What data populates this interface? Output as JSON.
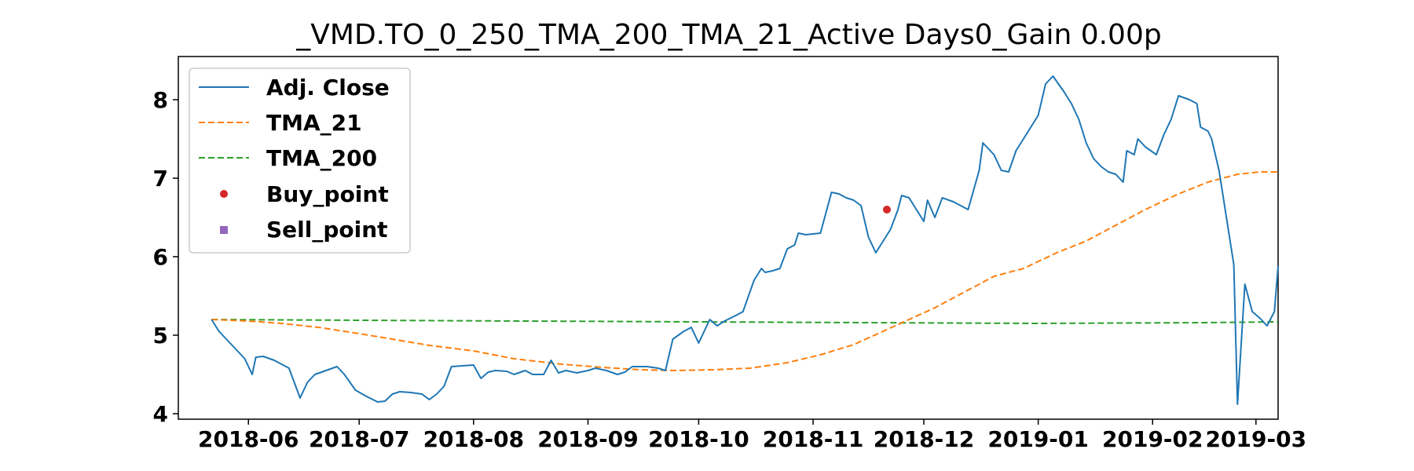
{
  "chart_data": {
    "type": "line",
    "title": "_VMD.TO_0_250_TMA_200_TMA_21_Active Days0_Gain   0.00p",
    "xlabel": "",
    "ylabel": "",
    "x_ticks": [
      "2018-06",
      "2018-07",
      "2018-08",
      "2018-09",
      "2018-10",
      "2018-11",
      "2018-12",
      "2019-01",
      "2019-02",
      "2019-03"
    ],
    "y_ticks": [
      4,
      5,
      6,
      7,
      8
    ],
    "xlim": [
      "2018-05-13",
      "2019-03-07"
    ],
    "ylim": [
      3.93,
      8.55
    ],
    "grid": false,
    "legend_position": "upper left",
    "series": [
      {
        "name": "Adj. Close",
        "style": "solid",
        "color": "#1f77b4",
        "points": [
          [
            "2018-05-22",
            5.2
          ],
          [
            "2018-05-24",
            5.05
          ],
          [
            "2018-05-28",
            4.85
          ],
          [
            "2018-05-31",
            4.7
          ],
          [
            "2018-06-02",
            4.5
          ],
          [
            "2018-06-03",
            4.72
          ],
          [
            "2018-06-05",
            4.73
          ],
          [
            "2018-06-08",
            4.68
          ],
          [
            "2018-06-12",
            4.58
          ],
          [
            "2018-06-15",
            4.2
          ],
          [
            "2018-06-17",
            4.4
          ],
          [
            "2018-06-19",
            4.5
          ],
          [
            "2018-06-22",
            4.55
          ],
          [
            "2018-06-25",
            4.6
          ],
          [
            "2018-06-27",
            4.5
          ],
          [
            "2018-06-30",
            4.3
          ],
          [
            "2018-07-03",
            4.22
          ],
          [
            "2018-07-06",
            4.15
          ],
          [
            "2018-07-08",
            4.16
          ],
          [
            "2018-07-10",
            4.25
          ],
          [
            "2018-07-12",
            4.28
          ],
          [
            "2018-07-15",
            4.27
          ],
          [
            "2018-07-18",
            4.25
          ],
          [
            "2018-07-20",
            4.18
          ],
          [
            "2018-07-22",
            4.25
          ],
          [
            "2018-07-24",
            4.35
          ],
          [
            "2018-07-26",
            4.6
          ],
          [
            "2018-07-29",
            4.61
          ],
          [
            "2018-08-01",
            4.62
          ],
          [
            "2018-08-03",
            4.45
          ],
          [
            "2018-08-05",
            4.53
          ],
          [
            "2018-08-07",
            4.55
          ],
          [
            "2018-08-10",
            4.54
          ],
          [
            "2018-08-12",
            4.5
          ],
          [
            "2018-08-15",
            4.55
          ],
          [
            "2018-08-17",
            4.5
          ],
          [
            "2018-08-20",
            4.5
          ],
          [
            "2018-08-22",
            4.68
          ],
          [
            "2018-08-24",
            4.52
          ],
          [
            "2018-08-26",
            4.55
          ],
          [
            "2018-08-29",
            4.52
          ],
          [
            "2018-09-01",
            4.55
          ],
          [
            "2018-09-03",
            4.58
          ],
          [
            "2018-09-06",
            4.55
          ],
          [
            "2018-09-09",
            4.5
          ],
          [
            "2018-09-11",
            4.53
          ],
          [
            "2018-09-13",
            4.6
          ],
          [
            "2018-09-17",
            4.6
          ],
          [
            "2018-09-20",
            4.58
          ],
          [
            "2018-09-22",
            4.55
          ],
          [
            "2018-09-24",
            4.95
          ],
          [
            "2018-09-27",
            5.05
          ],
          [
            "2018-09-29",
            5.1
          ],
          [
            "2018-10-01",
            4.9
          ],
          [
            "2018-10-04",
            5.2
          ],
          [
            "2018-10-06",
            5.12
          ],
          [
            "2018-10-08",
            5.18
          ],
          [
            "2018-10-11",
            5.25
          ],
          [
            "2018-10-13",
            5.3
          ],
          [
            "2018-10-16",
            5.7
          ],
          [
            "2018-10-18",
            5.85
          ],
          [
            "2018-10-19",
            5.8
          ],
          [
            "2018-10-21",
            5.82
          ],
          [
            "2018-10-23",
            5.85
          ],
          [
            "2018-10-25",
            6.1
          ],
          [
            "2018-10-27",
            6.15
          ],
          [
            "2018-10-28",
            6.3
          ],
          [
            "2018-10-30",
            6.28
          ],
          [
            "2018-11-03",
            6.3
          ],
          [
            "2018-11-06",
            6.82
          ],
          [
            "2018-11-08",
            6.8
          ],
          [
            "2018-11-10",
            6.75
          ],
          [
            "2018-11-12",
            6.72
          ],
          [
            "2018-11-14",
            6.65
          ],
          [
            "2018-11-16",
            6.25
          ],
          [
            "2018-11-18",
            6.05
          ],
          [
            "2018-11-20",
            6.2
          ],
          [
            "2018-11-22",
            6.35
          ],
          [
            "2018-11-24",
            6.6
          ],
          [
            "2018-11-25",
            6.78
          ],
          [
            "2018-11-27",
            6.75
          ],
          [
            "2018-11-29",
            6.6
          ],
          [
            "2018-12-01",
            6.45
          ],
          [
            "2018-12-02",
            6.72
          ],
          [
            "2018-12-04",
            6.5
          ],
          [
            "2018-12-06",
            6.75
          ],
          [
            "2018-12-09",
            6.7
          ],
          [
            "2018-12-11",
            6.65
          ],
          [
            "2018-12-13",
            6.6
          ],
          [
            "2018-12-16",
            7.1
          ],
          [
            "2018-12-17",
            7.45
          ],
          [
            "2018-12-20",
            7.3
          ],
          [
            "2018-12-22",
            7.1
          ],
          [
            "2018-12-24",
            7.08
          ],
          [
            "2018-12-26",
            7.35
          ],
          [
            "2018-12-28",
            7.5
          ],
          [
            "2018-12-30",
            7.65
          ],
          [
            "2019-01-01",
            7.8
          ],
          [
            "2019-01-03",
            8.2
          ],
          [
            "2019-01-05",
            8.3
          ],
          [
            "2019-01-08",
            8.1
          ],
          [
            "2019-01-10",
            7.95
          ],
          [
            "2019-01-12",
            7.75
          ],
          [
            "2019-01-14",
            7.45
          ],
          [
            "2019-01-16",
            7.25
          ],
          [
            "2019-01-18",
            7.15
          ],
          [
            "2019-01-20",
            7.08
          ],
          [
            "2019-01-22",
            7.05
          ],
          [
            "2019-01-24",
            6.95
          ],
          [
            "2019-01-25",
            7.35
          ],
          [
            "2019-01-27",
            7.3
          ],
          [
            "2019-01-28",
            7.5
          ],
          [
            "2019-01-30",
            7.4
          ],
          [
            "2019-02-02",
            7.3
          ],
          [
            "2019-02-04",
            7.55
          ],
          [
            "2019-02-06",
            7.75
          ],
          [
            "2019-02-08",
            8.05
          ],
          [
            "2019-02-11",
            8.0
          ],
          [
            "2019-02-13",
            7.95
          ],
          [
            "2019-02-14",
            7.65
          ],
          [
            "2019-02-16",
            7.6
          ],
          [
            "2019-02-17",
            7.5
          ],
          [
            "2019-02-19",
            7.1
          ],
          [
            "2019-02-21",
            6.5
          ],
          [
            "2019-02-23",
            5.9
          ],
          [
            "2019-02-24",
            4.12
          ],
          [
            "2019-02-26",
            5.65
          ],
          [
            "2019-02-28",
            5.3
          ],
          [
            "2019-03-02",
            5.22
          ],
          [
            "2019-03-04",
            5.12
          ],
          [
            "2019-03-06",
            5.3
          ],
          [
            "2019-03-07",
            5.88
          ]
        ]
      },
      {
        "name": "TMA_21",
        "style": "dashed",
        "color": "#ff7f0e",
        "points": [
          [
            "2018-05-22",
            5.2
          ],
          [
            "2018-06-01",
            5.18
          ],
          [
            "2018-06-10",
            5.15
          ],
          [
            "2018-06-20",
            5.1
          ],
          [
            "2018-07-01",
            5.02
          ],
          [
            "2018-07-10",
            4.95
          ],
          [
            "2018-07-20",
            4.87
          ],
          [
            "2018-08-01",
            4.8
          ],
          [
            "2018-08-12",
            4.7
          ],
          [
            "2018-08-25",
            4.63
          ],
          [
            "2018-09-05",
            4.59
          ],
          [
            "2018-09-15",
            4.56
          ],
          [
            "2018-09-25",
            4.55
          ],
          [
            "2018-10-05",
            4.56
          ],
          [
            "2018-10-15",
            4.58
          ],
          [
            "2018-10-25",
            4.65
          ],
          [
            "2018-11-03",
            4.75
          ],
          [
            "2018-11-12",
            4.88
          ],
          [
            "2018-11-20",
            5.05
          ],
          [
            "2018-11-27",
            5.2
          ],
          [
            "2018-12-04",
            5.35
          ],
          [
            "2018-12-12",
            5.55
          ],
          [
            "2018-12-20",
            5.75
          ],
          [
            "2018-12-28",
            5.85
          ],
          [
            "2019-01-06",
            6.05
          ],
          [
            "2019-01-14",
            6.2
          ],
          [
            "2019-01-22",
            6.4
          ],
          [
            "2019-01-30",
            6.6
          ],
          [
            "2019-02-08",
            6.8
          ],
          [
            "2019-02-16",
            6.95
          ],
          [
            "2019-02-24",
            7.05
          ],
          [
            "2019-03-02",
            7.08
          ],
          [
            "2019-03-07",
            7.08
          ]
        ]
      },
      {
        "name": "TMA_200",
        "style": "dashed",
        "color": "#2ca02c",
        "points": [
          [
            "2018-05-22",
            5.2
          ],
          [
            "2018-07-01",
            5.19
          ],
          [
            "2018-08-15",
            5.18
          ],
          [
            "2018-10-01",
            5.17
          ],
          [
            "2018-11-15",
            5.16
          ],
          [
            "2019-01-01",
            5.15
          ],
          [
            "2019-02-15",
            5.16
          ],
          [
            "2019-03-07",
            5.17
          ]
        ]
      }
    ],
    "markers": [
      {
        "name": "Buy_point",
        "shape": "circle",
        "color": "#d62728",
        "points": [
          [
            "2018-11-21",
            6.6
          ]
        ]
      },
      {
        "name": "Sell_point",
        "shape": "square",
        "color": "#9467bd",
        "points": []
      }
    ]
  }
}
